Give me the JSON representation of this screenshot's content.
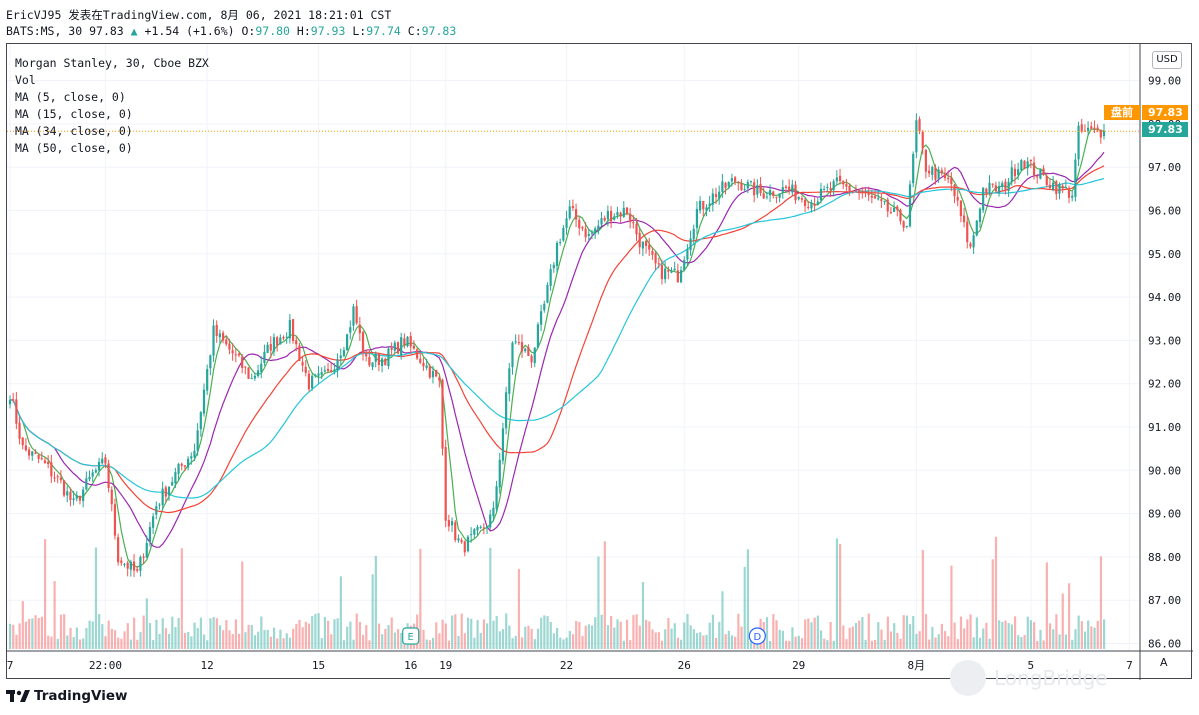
{
  "header": {
    "line1": "EricVJ95 发表在TradingView.com, 8月 06, 2021 18:21:01 CST",
    "symbol": "BATS:MS, 30",
    "last": "97.83",
    "arrow": "▲",
    "change": "+1.54 (+1.6%)",
    "o_label": "O:",
    "o_val": "97.80",
    "h_label": "H:",
    "h_val": "97.93",
    "l_label": "L:",
    "l_val": "97.74",
    "c_label": "C:",
    "c_val": "97.83"
  },
  "legend": {
    "title": "Morgan Stanley, 30, Cboe BZX",
    "vol": "Vol",
    "ma5": "MA (5, close, 0)",
    "ma15": "MA (15, close, 0)",
    "ma34": "MA (34, close, 0)",
    "ma50": "MA (50, close, 0)"
  },
  "currency": "USD",
  "tags": {
    "premarket_label": "盘前",
    "premarket_value": "97.83",
    "last_value": "97.83"
  },
  "events": {
    "earnings": "E",
    "dividend": "D"
  },
  "auto_button": "A",
  "footer": {
    "brand": "TradingView",
    "watermark": "LongBridge"
  },
  "colors": {
    "up": "#26a69a",
    "down": "#ef5350",
    "ma5": "#4caf50",
    "ma15": "#9c27b0",
    "ma34": "#f44336",
    "ma50": "#26c6da",
    "premarket": "#ff9800",
    "last": "#26a69a"
  },
  "chart_data": {
    "type": "candlestick",
    "title": "Morgan Stanley, 30, Cboe BZX",
    "ylim": [
      85.8,
      99.5
    ],
    "y_ticks": [
      86,
      87,
      88,
      89,
      90,
      91,
      92,
      93,
      94,
      95,
      96,
      97,
      98,
      99
    ],
    "x_ticks": [
      "7",
      "22:00",
      "12",
      "15",
      "16",
      "19",
      "22",
      "26",
      "29",
      "8月",
      "5",
      "7"
    ],
    "x_tick_index": [
      0,
      30,
      62,
      97,
      126,
      137,
      175,
      212,
      248,
      285,
      321,
      352
    ],
    "n_bars": 345,
    "price_anchors": [
      [
        0,
        91.8
      ],
      [
        4,
        90.5
      ],
      [
        10,
        90.2
      ],
      [
        16,
        89.7
      ],
      [
        20,
        89.2
      ],
      [
        26,
        89.9
      ],
      [
        30,
        90.2
      ],
      [
        34,
        88.0
      ],
      [
        40,
        87.6
      ],
      [
        46,
        89.2
      ],
      [
        52,
        89.9
      ],
      [
        58,
        90.5
      ],
      [
        64,
        93.2
      ],
      [
        70,
        92.7
      ],
      [
        76,
        92.1
      ],
      [
        82,
        92.9
      ],
      [
        88,
        93.3
      ],
      [
        94,
        92.0
      ],
      [
        100,
        92.2
      ],
      [
        106,
        93.1
      ],
      [
        108,
        93.7
      ],
      [
        112,
        92.5
      ],
      [
        118,
        92.6
      ],
      [
        124,
        93.0
      ],
      [
        130,
        92.5
      ],
      [
        135,
        92.0
      ],
      [
        137,
        89.0
      ],
      [
        142,
        88.2
      ],
      [
        148,
        88.6
      ],
      [
        152,
        89.0
      ],
      [
        155,
        91.0
      ],
      [
        158,
        93.0
      ],
      [
        164,
        92.6
      ],
      [
        168,
        93.8
      ],
      [
        172,
        95.2
      ],
      [
        176,
        96.0
      ],
      [
        182,
        95.4
      ],
      [
        188,
        95.9
      ],
      [
        194,
        96.0
      ],
      [
        198,
        95.3
      ],
      [
        204,
        94.6
      ],
      [
        210,
        94.5
      ],
      [
        216,
        96.0
      ],
      [
        222,
        96.4
      ],
      [
        228,
        96.7
      ],
      [
        236,
        96.4
      ],
      [
        244,
        96.5
      ],
      [
        252,
        96.2
      ],
      [
        260,
        96.6
      ],
      [
        268,
        96.4
      ],
      [
        276,
        96.0
      ],
      [
        282,
        95.7
      ],
      [
        285,
        98.0
      ],
      [
        288,
        97.0
      ],
      [
        296,
        96.6
      ],
      [
        302,
        95.1
      ],
      [
        306,
        96.5
      ],
      [
        312,
        96.5
      ],
      [
        318,
        97.2
      ],
      [
        324,
        96.8
      ],
      [
        330,
        96.5
      ],
      [
        334,
        96.4
      ],
      [
        336,
        97.8
      ],
      [
        344,
        97.83
      ]
    ],
    "moving_averages": [
      {
        "name": "MA (5, close, 0)",
        "period": 5
      },
      {
        "name": "MA (15, close, 0)",
        "period": 15
      },
      {
        "name": "MA (34, close, 0)",
        "period": 34
      },
      {
        "name": "MA (50, close, 0)",
        "period": 50
      }
    ],
    "last_price": 97.83
  }
}
